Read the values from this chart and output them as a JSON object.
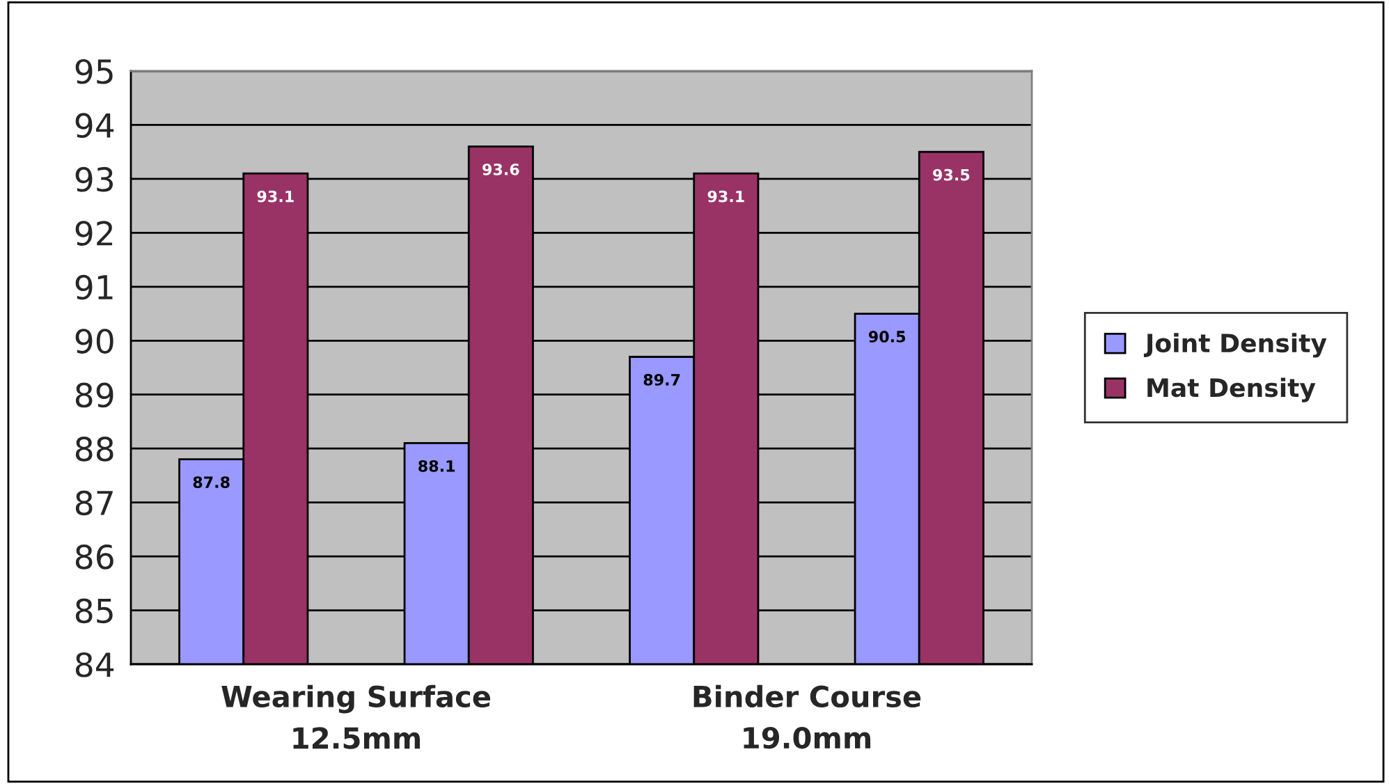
{
  "chart_data": {
    "type": "bar",
    "categories": [
      null,
      null,
      null,
      null
    ],
    "series": [
      {
        "name": "Joint Density",
        "color": "#9999ff",
        "values": [
          87.8,
          88.1,
          89.7,
          90.5
        ]
      },
      {
        "name": "Mat Density",
        "color": "#993366",
        "values": [
          93.1,
          93.6,
          93.1,
          93.5
        ]
      }
    ],
    "ylim": [
      84,
      95
    ],
    "yticks": [
      84,
      85,
      86,
      87,
      88,
      89,
      90,
      91,
      92,
      93,
      94,
      95
    ],
    "grid": "y",
    "legend": "right",
    "data_labels": true,
    "annotations": [
      "Wearing Surface\n12.5mm",
      "Binder Course\n19.0mm"
    ]
  }
}
